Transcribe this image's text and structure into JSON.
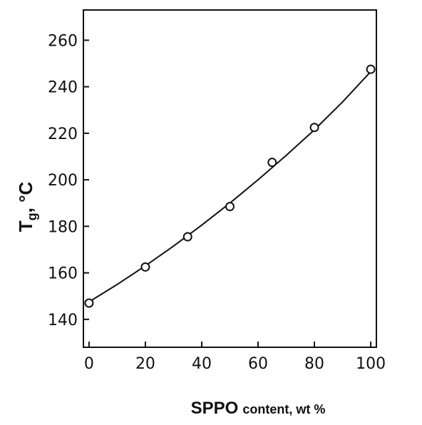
{
  "chart_data": {
    "type": "scatter",
    "xlabel": {
      "main": "SPPO",
      "rest": "content, wt %"
    },
    "ylabel": {
      "main": "T",
      "sub": "g",
      "rest": ", °C"
    },
    "xlim": [
      -2,
      102
    ],
    "ylim": [
      128,
      273
    ],
    "x_ticks": [
      0,
      20,
      40,
      60,
      80,
      100
    ],
    "y_ticks": [
      140,
      160,
      180,
      200,
      220,
      240,
      260
    ],
    "x_tick_labels": [
      "0",
      "20",
      "40",
      "60",
      "80",
      "100"
    ],
    "y_tick_labels": [
      "140",
      "160",
      "180",
      "200",
      "220",
      "240",
      "260"
    ],
    "grid": false,
    "series": [
      {
        "x": [
          0,
          20,
          35,
          50,
          65,
          80,
          100
        ],
        "values": [
          147,
          162.5,
          175.5,
          188.5,
          207.5,
          222.5,
          247.5
        ]
      }
    ],
    "fit_curve": {
      "x": [
        0,
        10,
        20,
        30,
        40,
        50,
        60,
        70,
        80,
        90,
        100
      ],
      "values": [
        147.5,
        155,
        163,
        171.5,
        180.5,
        190,
        200,
        210.5,
        221.5,
        233.5,
        246.5
      ]
    },
    "colors": {
      "ink": "#111111"
    }
  }
}
